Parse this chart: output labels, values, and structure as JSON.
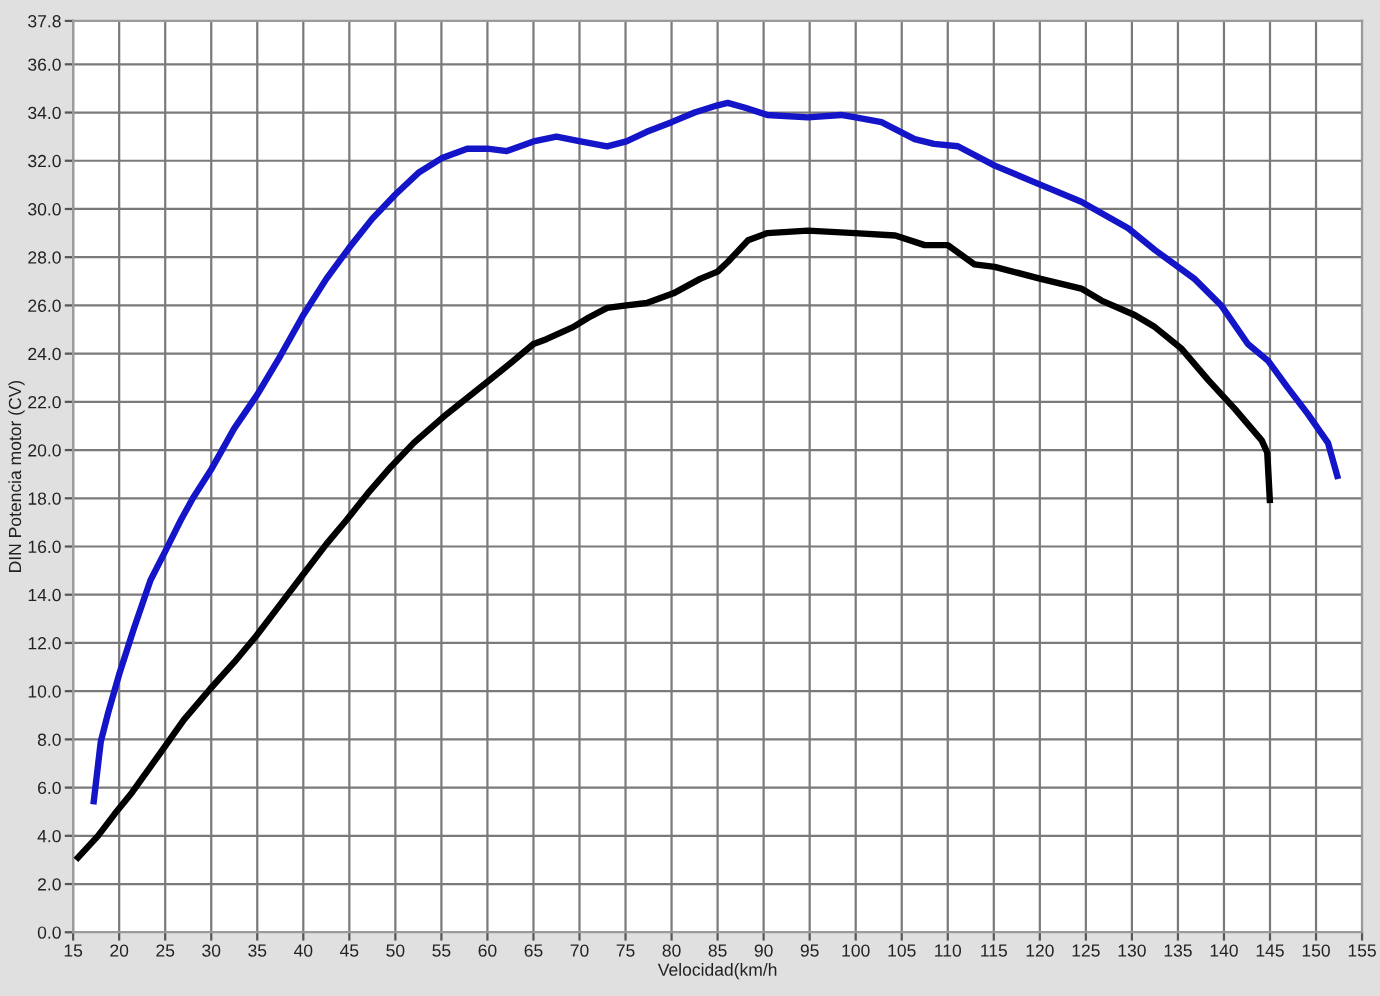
{
  "chart_data": {
    "type": "line",
    "xlabel": "Velocidad(km/h",
    "ylabel": "DIN Potencia motor (CV)",
    "series": [
      {
        "color": "#1414c8",
        "x": [
          17.2,
          18.0,
          18.8,
          20.0,
          21.6,
          23.4,
          25.0,
          26.7,
          28.0,
          30.0,
          32.5,
          35.0,
          37.5,
          40.0,
          42.5,
          45.0,
          47.5,
          50.0,
          52.5,
          55.0,
          57.8,
          60.0,
          62.1,
          65.0,
          67.5,
          70.1,
          73.0,
          75.1,
          77.3,
          80.0,
          82.5,
          85.0,
          86.1,
          88.0,
          90.4,
          94.8,
          98.4,
          100.0,
          102.8,
          106.4,
          108.5,
          111.1,
          115.1,
          120.1,
          124.5,
          129.6,
          132.5,
          136.8,
          139.7,
          142.6,
          144.8,
          146.9,
          149.1,
          151.3,
          152.4
        ],
        "values": [
          5.3,
          7.9,
          9.1,
          10.7,
          12.6,
          14.6,
          15.8,
          17.1,
          18.0,
          19.2,
          20.9,
          22.3,
          23.9,
          25.6,
          27.1,
          28.4,
          29.6,
          30.6,
          31.5,
          32.1,
          32.5,
          32.5,
          32.4,
          32.8,
          33.0,
          32.8,
          32.6,
          32.8,
          33.2,
          33.6,
          34.0,
          34.3,
          34.4,
          34.2,
          33.9,
          33.8,
          33.9,
          33.8,
          33.6,
          32.9,
          32.7,
          32.6,
          31.8,
          31.0,
          30.3,
          29.2,
          28.3,
          27.1,
          26.0,
          24.4,
          23.7,
          22.6,
          21.5,
          20.3,
          18.8
        ]
      },
      {
        "color": "#000000",
        "x": [
          15.3,
          17.7,
          19.5,
          21.4,
          24.4,
          27.0,
          29.9,
          32.5,
          34.9,
          37.5,
          40.1,
          42.5,
          44.7,
          47.0,
          49.5,
          52.0,
          55.6,
          59.9,
          62.5,
          65.0,
          66.4,
          69.3,
          71.0,
          73.0,
          75.1,
          77.3,
          80.2,
          83.1,
          85.0,
          86.1,
          88.3,
          90.4,
          94.8,
          99.9,
          104.3,
          107.5,
          110.0,
          112.9,
          115.1,
          120.1,
          124.5,
          126.7,
          130.3,
          132.5,
          135.4,
          138.3,
          141.2,
          144.1,
          144.7,
          145.0
        ],
        "values": [
          3.0,
          4.0,
          4.9,
          5.8,
          7.4,
          8.8,
          10.1,
          11.2,
          12.3,
          13.6,
          14.9,
          16.1,
          17.1,
          18.2,
          19.3,
          20.3,
          21.5,
          22.8,
          23.6,
          24.4,
          24.6,
          25.1,
          25.5,
          25.9,
          26.0,
          26.1,
          26.5,
          27.1,
          27.4,
          27.8,
          28.7,
          29.0,
          29.1,
          29.0,
          28.9,
          28.5,
          28.5,
          27.7,
          27.6,
          27.1,
          26.7,
          26.2,
          25.6,
          25.1,
          24.2,
          22.9,
          21.7,
          20.4,
          19.9,
          17.8
        ]
      }
    ],
    "xlim": [
      15,
      155
    ],
    "xticks": [
      15,
      20,
      25,
      30,
      35,
      40,
      45,
      50,
      55,
      60,
      65,
      70,
      75,
      80,
      85,
      90,
      95,
      100,
      105,
      110,
      115,
      120,
      125,
      130,
      135,
      140,
      145,
      150,
      155
    ],
    "ylim": [
      0,
      37.8
    ],
    "yticks": [
      {
        "value": 0,
        "label": "0.0"
      },
      {
        "value": 2,
        "label": "2.0"
      },
      {
        "value": 4,
        "label": "4.0"
      },
      {
        "value": 6,
        "label": "6.0"
      },
      {
        "value": 8,
        "label": "8.0"
      },
      {
        "value": 10,
        "label": "10.0"
      },
      {
        "value": 12,
        "label": "12.0"
      },
      {
        "value": 14,
        "label": "14.0"
      },
      {
        "value": 16,
        "label": "16.0"
      },
      {
        "value": 18,
        "label": "18.0"
      },
      {
        "value": 20,
        "label": "20.0"
      },
      {
        "value": 22,
        "label": "22.0"
      },
      {
        "value": 24,
        "label": "24.0"
      },
      {
        "value": 26,
        "label": "26.0"
      },
      {
        "value": 28,
        "label": "28.0"
      },
      {
        "value": 30,
        "label": "30.0"
      },
      {
        "value": 32,
        "label": "32.0"
      },
      {
        "value": 34,
        "label": "34.0"
      },
      {
        "value": 36,
        "label": "36.0"
      },
      {
        "value": 37.8,
        "label": "37.8"
      }
    ],
    "grid": true
  }
}
